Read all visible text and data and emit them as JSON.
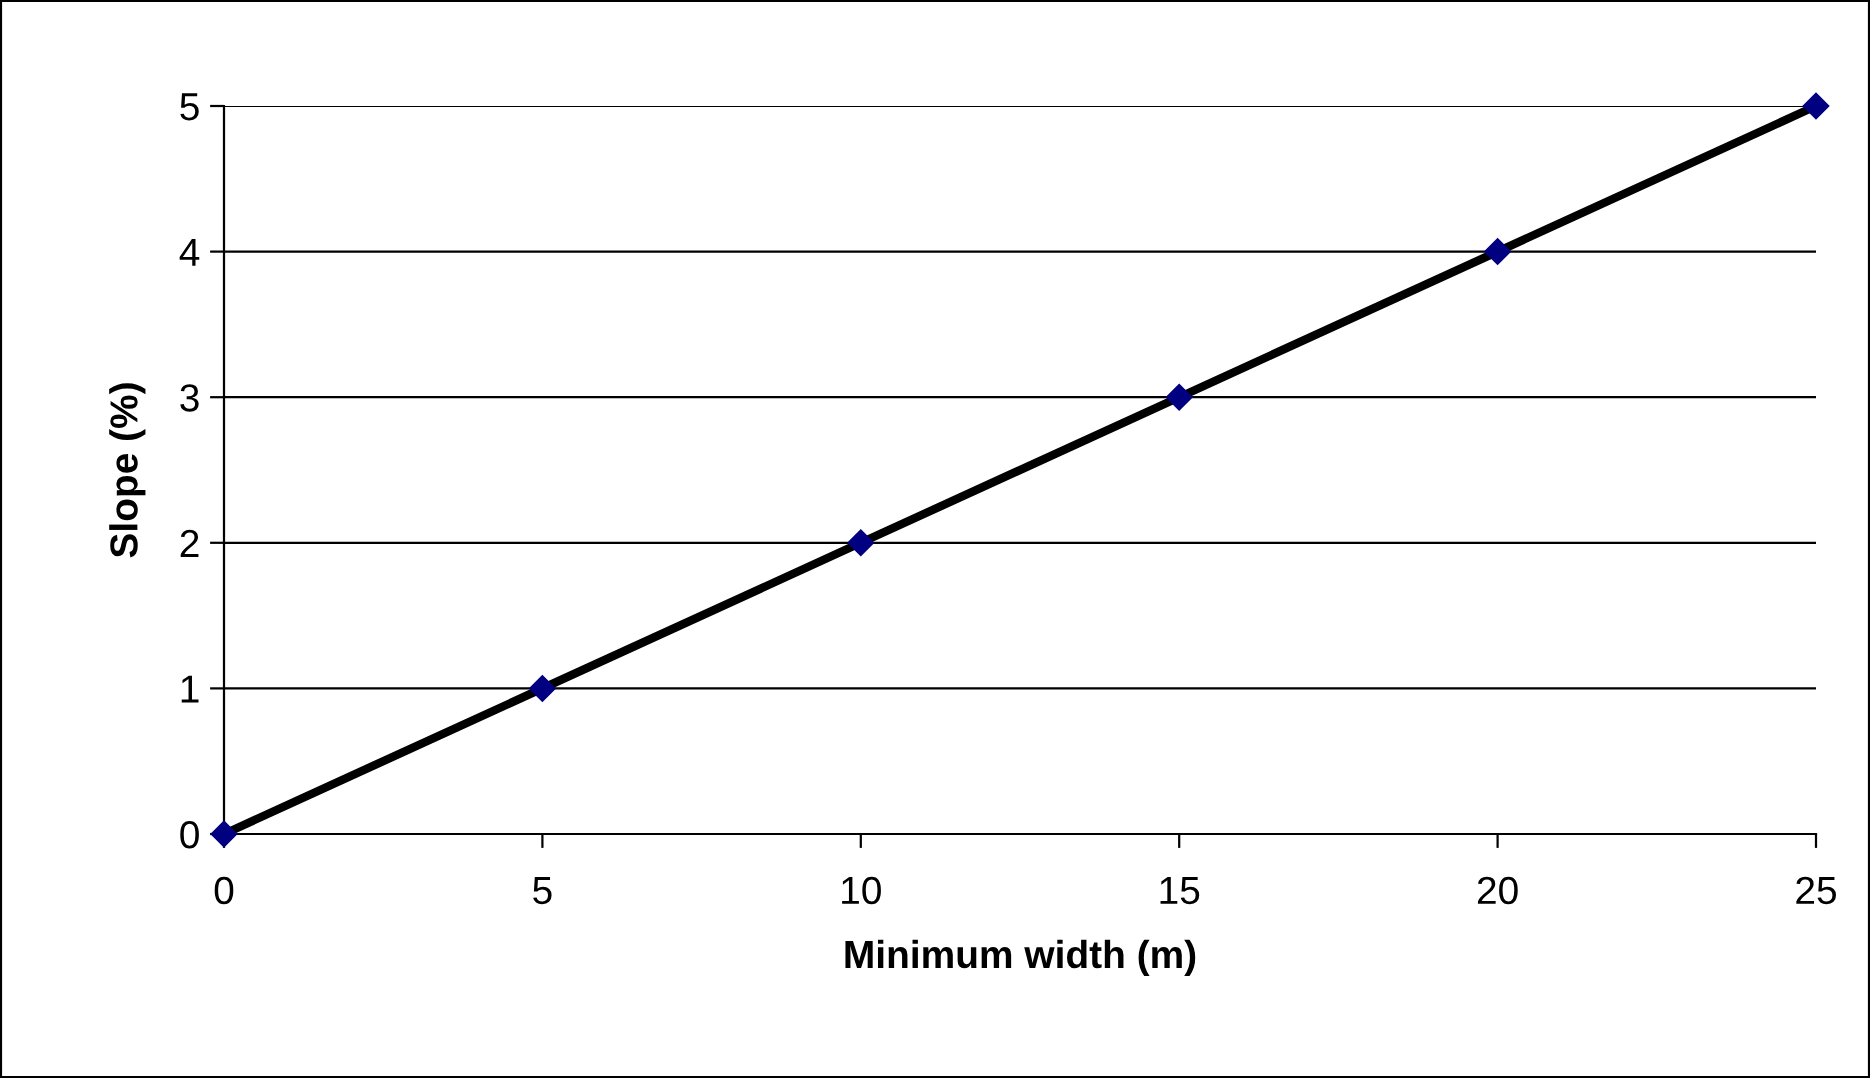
{
  "chart_data": {
    "type": "line",
    "xlabel": "Minimum width (m)",
    "ylabel": "Slope (%)",
    "x": [
      0,
      5,
      10,
      15,
      20,
      25
    ],
    "series": [
      {
        "color": "#000000",
        "colors": [
          "#000080",
          "#000080",
          "#000080",
          "#000080",
          "#000080",
          "#000080"
        ],
        "values": [
          0,
          1,
          2,
          3,
          4,
          5
        ]
      }
    ],
    "xlim": [
      0,
      25
    ],
    "xticks": [
      0,
      5,
      10,
      15,
      20,
      25
    ],
    "ylim": [
      0,
      5
    ],
    "yticks": [
      0,
      1,
      2,
      3,
      4,
      5
    ],
    "grid": "y",
    "marker": "diamond",
    "line_style": "solid",
    "legend": false
  }
}
